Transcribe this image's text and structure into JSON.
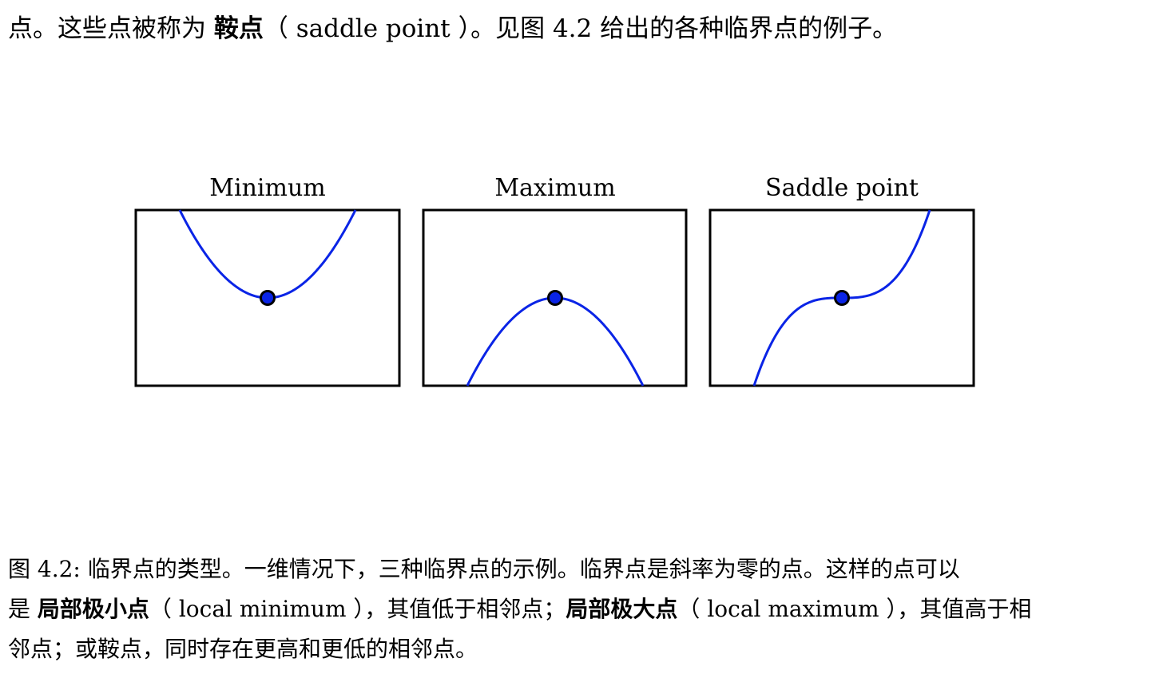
{
  "intro": {
    "pre": "点。这些点被称为 ",
    "term": "鞍点",
    "post": "（ saddle point ）。见图 4.2 给出的各种临界点的例子。"
  },
  "figure": {
    "panels": [
      {
        "title": "Minimum",
        "kind": "minimum"
      },
      {
        "title": "Maximum",
        "kind": "maximum"
      },
      {
        "title": "Saddle point",
        "kind": "saddle"
      }
    ],
    "curve_color": "#0a24e6",
    "point_color": "#0a24e6"
  },
  "caption": {
    "line1": "图 4.2: 临界点的类型。一维情况下，三种临界点的示例。临界点是斜率为零的点。这样的点可以",
    "line2_pre": "是 ",
    "term_min": "局部极小点",
    "line2_mid1": "（ local minimum ），其值低于相邻点；",
    "term_max": "局部极大点",
    "line2_mid2": "（ local maximum ），其值高于相",
    "line3": "邻点；或鞍点，同时存在更高和更低的相邻点。"
  }
}
